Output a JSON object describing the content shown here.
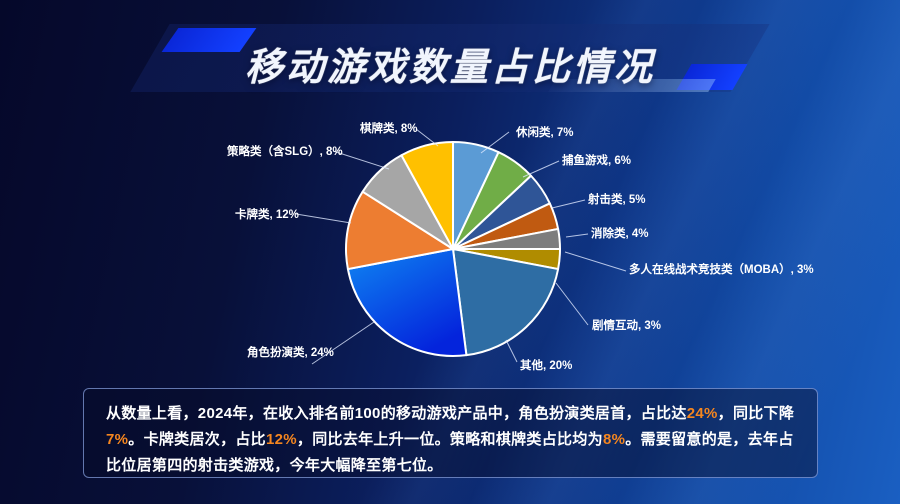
{
  "title": {
    "text": "移动游戏数量占比情况"
  },
  "colors": {
    "background_dark": "#05082a",
    "background_light": "#1a5fc2",
    "accent_blue": "#1340ff",
    "highlight_orange": "#f5861f",
    "pie_stroke": "#ffffff",
    "label_text": "#ffffff"
  },
  "chart_data": {
    "type": "pie",
    "title": "移动游戏数量占比情况",
    "unit": "%",
    "start_angle_deg": -90,
    "direction": "clockwise",
    "legend": "none",
    "labels_position": "outside-with-leader-lines",
    "slices": [
      {
        "name": "休闲类",
        "value": 7,
        "color": "#5B9BD5",
        "display": "休闲类, 7%"
      },
      {
        "name": "捕鱼游戏",
        "value": 6,
        "color": "#70AD47",
        "display": "捕鱼游戏, 6%"
      },
      {
        "name": "射击类",
        "value": 5,
        "color": "#2F5597",
        "display": "射击类, 5%"
      },
      {
        "name": "消除类",
        "value": 4,
        "color": "#C05A11",
        "display": "消除类, 4%"
      },
      {
        "name": "多人在线战术竞技类（MOBA）",
        "value": 3,
        "color": "#7D7D7D",
        "display": "多人在线战术竞技类（MOBA）, 3%"
      },
      {
        "name": "剧情互动",
        "value": 3,
        "color": "#B08C00",
        "display": "剧情互动, 3%"
      },
      {
        "name": "其他",
        "value": 20,
        "color": "#2E6DA4",
        "display": "其他, 20%"
      },
      {
        "name": "角色扮演类",
        "value": 24,
        "color": "#0D6BEA",
        "gradient": [
          "#0F86F2",
          "#0424DC"
        ],
        "display": "角色扮演类, 24%"
      },
      {
        "name": "卡牌类",
        "value": 12,
        "color": "#ED7D31",
        "display": "卡牌类, 12%"
      },
      {
        "name": "策略类（含SLG）",
        "value": 8,
        "color": "#A6A6A6",
        "display": "策略类（含SLG）, 8%"
      },
      {
        "name": "棋牌类",
        "value": 8,
        "color": "#FFC000",
        "display": "棋牌类, 8%"
      }
    ]
  },
  "summary": {
    "segments": [
      {
        "text": "从数量上看，2024年，在收入排名前100的移动游戏产品中，角色扮演类居首，占比达",
        "highlight": false
      },
      {
        "text": "24%",
        "highlight": true
      },
      {
        "text": "，同比下降",
        "highlight": false
      },
      {
        "text": "7%",
        "highlight": true
      },
      {
        "text": "。卡牌类居次，占比",
        "highlight": false
      },
      {
        "text": "12%",
        "highlight": true
      },
      {
        "text": "，同比去年上升一位。策略和棋牌类占比均为",
        "highlight": false
      },
      {
        "text": "8%",
        "highlight": true
      },
      {
        "text": "。需要留意的是，去年占比位居第四的射击类游戏，今年大幅降至第七位。",
        "highlight": false
      }
    ]
  }
}
